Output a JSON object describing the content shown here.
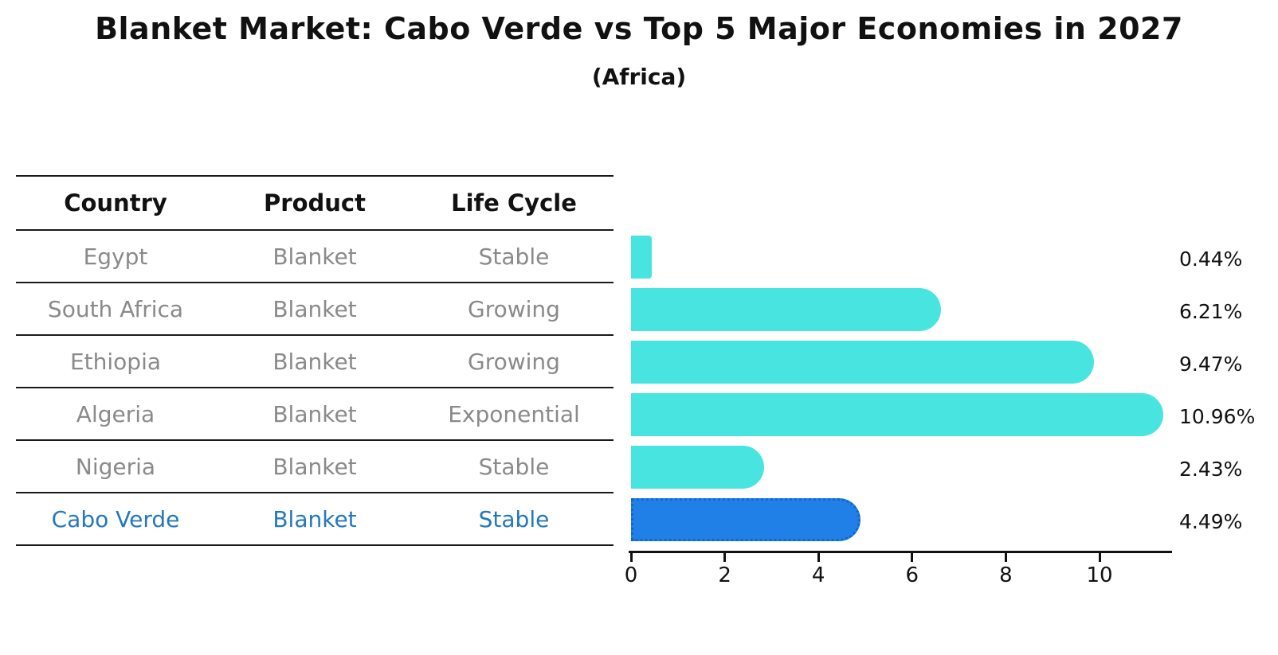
{
  "header": {
    "title": "Blanket Market: Cabo Verde vs Top 5 Major Economies in 2027",
    "subtitle": "(Africa)"
  },
  "table": {
    "columns": [
      "Country",
      "Product",
      "Life Cycle"
    ]
  },
  "chart_data": {
    "type": "bar",
    "orientation": "horizontal",
    "title": "Blanket Market: Cabo Verde vs Top 5 Major Economies in 2027",
    "subtitle": "(Africa)",
    "categories": [
      "Egypt",
      "South Africa",
      "Ethiopia",
      "Algeria",
      "Nigeria",
      "Cabo Verde"
    ],
    "values": [
      0.44,
      6.21,
      9.47,
      10.96,
      2.43,
      4.49
    ],
    "value_labels": [
      "0.44%",
      "6.21%",
      "9.47%",
      "10.96%",
      "2.43%",
      "4.49%"
    ],
    "rows": [
      {
        "country": "Egypt",
        "product": "Blanket",
        "life_cycle": "Stable",
        "value": 0.44,
        "label": "0.44%",
        "highlight": false
      },
      {
        "country": "South Africa",
        "product": "Blanket",
        "life_cycle": "Growing",
        "value": 6.21,
        "label": "6.21%",
        "highlight": false
      },
      {
        "country": "Ethiopia",
        "product": "Blanket",
        "life_cycle": "Growing",
        "value": 9.47,
        "label": "9.47%",
        "highlight": false
      },
      {
        "country": "Algeria",
        "product": "Blanket",
        "life_cycle": "Exponential",
        "value": 10.96,
        "label": "10.96%",
        "highlight": false
      },
      {
        "country": "Nigeria",
        "product": "Blanket",
        "life_cycle": "Stable",
        "value": 2.43,
        "label": "2.43%",
        "highlight": true
      },
      {
        "country": "Cabo Verde",
        "product": "Blanket",
        "life_cycle": "Stable",
        "value": 4.49,
        "label": "4.49%",
        "highlight": true
      }
    ],
    "highlight_country": "Cabo Verde",
    "xticks": [
      0,
      2,
      4,
      6,
      8,
      10
    ],
    "xlim": [
      0,
      11.5
    ],
    "grid": false,
    "legend": false,
    "colors": {
      "bar": "#48E5E0",
      "highlight_bar": "#2080E8",
      "highlight_bar_border": "#1565D0",
      "highlight_text": "#2478BE",
      "table_text": "#8a8a8a",
      "axis": "#111111"
    }
  }
}
